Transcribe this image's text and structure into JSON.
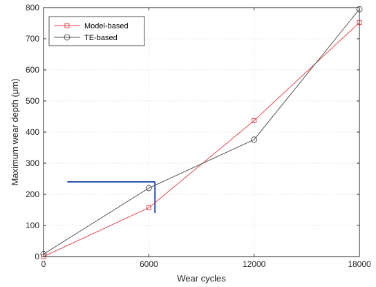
{
  "chart_data": {
    "type": "line",
    "xlabel": "Wear cycles",
    "ylabel": "Maximum wear depth (μm)",
    "xlim": [
      0,
      18000
    ],
    "ylim": [
      0,
      800
    ],
    "xticks": [
      0,
      6000,
      12000,
      18000
    ],
    "xtick_labels": [
      "0",
      "6000",
      "12000",
      "18000"
    ],
    "yticks": [
      0,
      100,
      200,
      300,
      400,
      500,
      600,
      700,
      800
    ],
    "ytick_labels": [
      "0",
      "100",
      "200",
      "300",
      "400",
      "500",
      "600",
      "700",
      "800"
    ],
    "grid": true,
    "legend_position": "top-left",
    "series": [
      {
        "name": "Model-based",
        "color": "#e8474d",
        "marker": "square",
        "x": [
          0,
          6000,
          12000,
          18000
        ],
        "y": [
          0,
          157,
          437,
          752
        ]
      },
      {
        "name": "TE-based",
        "color": "#555555",
        "marker": "circle",
        "x": [
          0,
          6000,
          12000,
          18000
        ],
        "y": [
          8,
          220,
          376,
          795
        ]
      }
    ],
    "annotation": {
      "color": "#2752b8",
      "horizontal_line": {
        "x_from": 1350,
        "x_to": 6350,
        "y": 240
      },
      "vertical_line": {
        "x": 6350,
        "y_from": 140,
        "y_to": 240
      }
    }
  }
}
